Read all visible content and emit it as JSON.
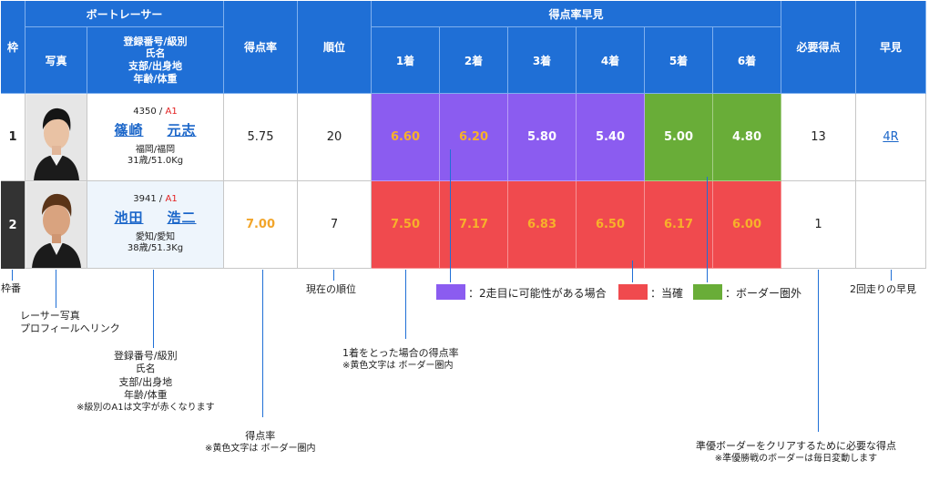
{
  "header": {
    "frame": "枠",
    "boat_racer": "ボートレーサー",
    "photo": "写真",
    "reg_info_lines": [
      "登録番号/級別",
      "氏名",
      "支部/出身地",
      "年齢/体重"
    ],
    "score_rate": "得点率",
    "rank": "順位",
    "quick_view": "得点率早見",
    "places": [
      "1着",
      "2着",
      "3着",
      "4着",
      "5着",
      "6着"
    ],
    "needed_points": "必要得点",
    "early_view": "早見"
  },
  "racers": [
    {
      "frame": "1",
      "reg_no": "4350",
      "separator": " / ",
      "class": "A1",
      "name_family": "篠崎",
      "name_given": "元志",
      "branch_birth": "福岡/福岡",
      "age_weight": "31歳/51.0Kg",
      "score_rate": "5.75",
      "rank": "20",
      "rates": [
        "6.60",
        "6.20",
        "5.80",
        "5.40",
        "5.00",
        "4.80"
      ],
      "rate_colors": [
        "purple",
        "purple",
        "purple",
        "purple",
        "green",
        "green"
      ],
      "rate_text": [
        "yellow",
        "yellow",
        "white",
        "white",
        "white",
        "white"
      ],
      "needed": "13",
      "early": "4R"
    },
    {
      "frame": "2",
      "reg_no": "3941",
      "separator": " / ",
      "class": "A1",
      "name_family": "池田",
      "name_given": "浩二",
      "branch_birth": "愛知/愛知",
      "age_weight": "38歳/51.3Kg",
      "score_rate": "7.00",
      "rank": "7",
      "rates": [
        "7.50",
        "7.17",
        "6.83",
        "6.50",
        "6.17",
        "6.00"
      ],
      "rate_colors": [
        "red",
        "red",
        "red",
        "red",
        "red",
        "red"
      ],
      "rate_text": [
        "yellow",
        "yellow",
        "yellow",
        "yellow",
        "yellow",
        "yellow"
      ],
      "needed": "1",
      "early": ""
    }
  ],
  "colors": {
    "header_blue": "#1f6fd6",
    "purple": "#8b5cf0",
    "red": "#f04a4e",
    "green": "#69ad38",
    "yellow_text": "#f7b12a"
  },
  "legend": {
    "purple": "：2走目に可能性がある場合",
    "red": "：当確",
    "green": "：ボーダー圏外"
  },
  "annotations": {
    "frame": "枠番",
    "photo_1": "レーサー写真",
    "photo_2": "プロフィールへリンク",
    "info_1": "登録番号/級別",
    "info_2": "氏名",
    "info_3": "支部/出身地",
    "info_4": "年齢/体重",
    "info_5": "※級別のA1は文字が赤くなります",
    "score_1": "得点率",
    "score_2": "※黄色文字は ボーダー圏内",
    "rank": "現在の順位",
    "place_1": "1着をとった場合の得点率",
    "place_2": "※黄色文字は ボーダー圏内",
    "needed_1": "準優ボーダーをクリアするために必要な得点",
    "needed_2": "※準優勝戦のボーダーは毎日変動します",
    "early": "2回走りの早見"
  }
}
